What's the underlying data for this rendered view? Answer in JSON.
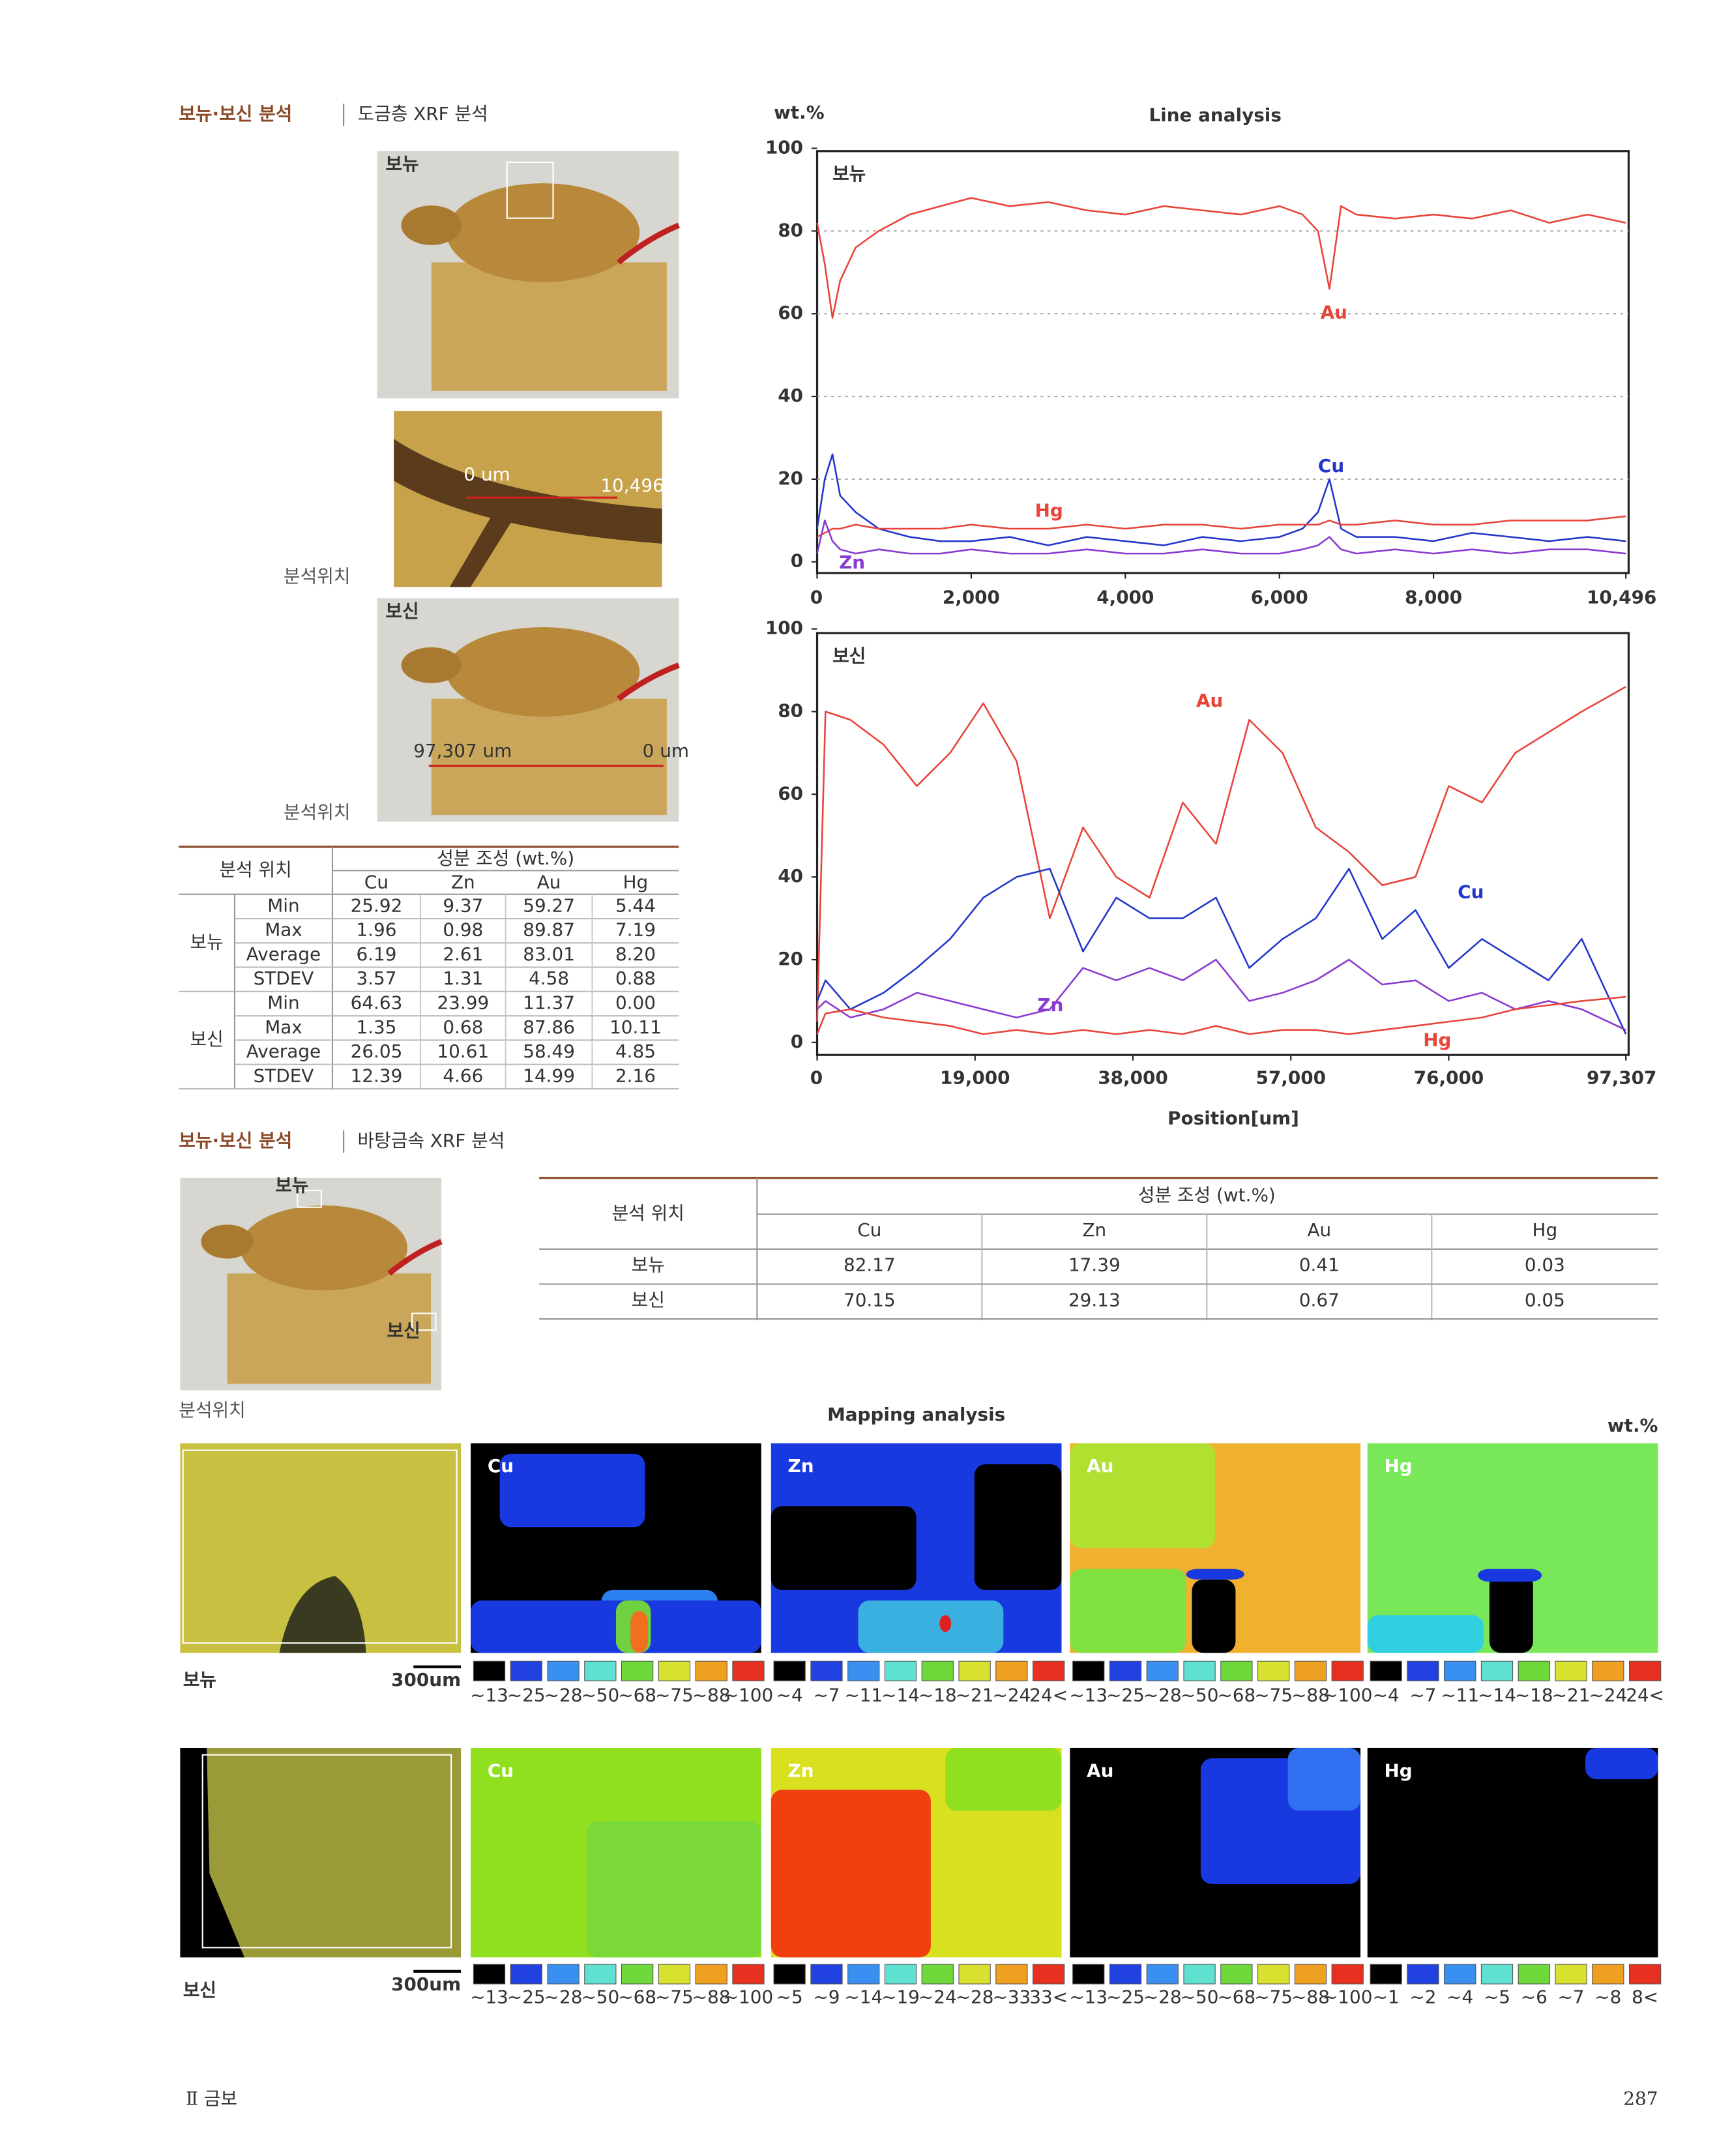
{
  "section1": {
    "title": "보뉴·보신 분석",
    "subtitle": "도금층 XRF 분석",
    "photo_tags": [
      "보뉴",
      "보신"
    ],
    "position_labels": [
      "분석위치",
      "분석위치"
    ],
    "scan_labels": [
      "0 um",
      "10,496",
      "97,307 um",
      "0 um"
    ]
  },
  "table1": {
    "location": "분석 위치",
    "composition": "성분 조성 (wt.%)",
    "elements": [
      "Cu",
      "Zn",
      "Au",
      "Hg"
    ],
    "groups": [
      {
        "name": "보뉴",
        "rows": [
          {
            "stat": "Min",
            "values": [
              "25.92",
              "9.37",
              "59.27",
              "5.44"
            ]
          },
          {
            "stat": "Max",
            "values": [
              "1.96",
              "0.98",
              "89.87",
              "7.19"
            ]
          },
          {
            "stat": "Average",
            "values": [
              "6.19",
              "2.61",
              "83.01",
              "8.20"
            ]
          },
          {
            "stat": "STDEV",
            "values": [
              "3.57",
              "1.31",
              "4.58",
              "0.88"
            ]
          }
        ]
      },
      {
        "name": "보신",
        "rows": [
          {
            "stat": "Min",
            "values": [
              "64.63",
              "23.99",
              "11.37",
              "0.00"
            ]
          },
          {
            "stat": "Max",
            "values": [
              "1.35",
              "0.68",
              "87.86",
              "10.11"
            ]
          },
          {
            "stat": "Average",
            "values": [
              "26.05",
              "10.61",
              "58.49",
              "4.85"
            ]
          },
          {
            "stat": "STDEV",
            "values": [
              "12.39",
              "4.66",
              "14.99",
              "2.16"
            ]
          }
        ]
      }
    ]
  },
  "chart_data": [
    {
      "type": "line",
      "title": "Line analysis",
      "y_label": "wt.%",
      "panel_label": "보뉴",
      "grid": true,
      "xlim": [
        0,
        10496
      ],
      "xticks": [
        0,
        {
          "value": 2000,
          "label": "2,000"
        },
        {
          "value": 4000,
          "label": "4,000"
        },
        {
          "value": 6000,
          "label": "6,000"
        },
        {
          "value": 8000,
          "label": "8,000"
        },
        {
          "value": 10496,
          "label": "10,496"
        }
      ],
      "ylim": [
        0,
        100
      ],
      "yticks": [
        0,
        20,
        40,
        60,
        80,
        100
      ],
      "x": [
        0,
        100,
        200,
        300,
        500,
        800,
        1200,
        1600,
        2000,
        2500,
        3000,
        3500,
        4000,
        4500,
        5000,
        5500,
        6000,
        6300,
        6500,
        6650,
        6800,
        7000,
        7500,
        8000,
        8500,
        9000,
        9500,
        10000,
        10496
      ],
      "series": [
        {
          "name": "Au",
          "color": "#e8443a",
          "values": [
            82,
            72,
            59,
            68,
            76,
            80,
            84,
            86,
            88,
            86,
            87,
            85,
            84,
            86,
            85,
            84,
            86,
            84,
            80,
            66,
            86,
            84,
            83,
            84,
            83,
            85,
            82,
            84,
            82
          ]
        },
        {
          "name": "Cu",
          "color": "#2436c8",
          "values": [
            8,
            20,
            26,
            16,
            12,
            8,
            6,
            5,
            5,
            6,
            4,
            6,
            5,
            4,
            6,
            5,
            6,
            8,
            12,
            20,
            8,
            6,
            6,
            5,
            7,
            6,
            5,
            6,
            5
          ]
        },
        {
          "name": "Hg",
          "color": "#e8443a",
          "values": [
            6,
            7,
            8,
            8,
            9,
            8,
            8,
            8,
            9,
            8,
            8,
            9,
            8,
            9,
            9,
            8,
            9,
            9,
            9,
            10,
            9,
            9,
            10,
            9,
            9,
            10,
            10,
            10,
            11
          ]
        },
        {
          "name": "Zn",
          "color": "#8a3ad0",
          "values": [
            2,
            10,
            5,
            3,
            2,
            3,
            2,
            2,
            3,
            2,
            2,
            3,
            2,
            2,
            3,
            2,
            2,
            3,
            4,
            6,
            3,
            2,
            3,
            2,
            3,
            2,
            3,
            3,
            2
          ]
        }
      ]
    },
    {
      "type": "line",
      "panel_label": "보신",
      "x_label": "Position[um]",
      "grid": false,
      "xlim": [
        0,
        97307
      ],
      "xticks": [
        0,
        {
          "value": 19000,
          "label": "19,000"
        },
        {
          "value": 38000,
          "label": "38,000"
        },
        {
          "value": 57000,
          "label": "57,000"
        },
        {
          "value": 76000,
          "label": "76,000"
        },
        {
          "value": 97307,
          "label": "97,307"
        }
      ],
      "ylim": [
        0,
        100
      ],
      "yticks": [
        0,
        20,
        40,
        60,
        80,
        100
      ],
      "x": [
        0,
        1000,
        4000,
        8000,
        12000,
        16000,
        20000,
        24000,
        28000,
        32000,
        36000,
        40000,
        44000,
        48000,
        52000,
        56000,
        60000,
        64000,
        68000,
        72000,
        76000,
        80000,
        84000,
        88000,
        92000,
        97307
      ],
      "series": [
        {
          "name": "Au",
          "color": "#e8443a",
          "values": [
            5,
            80,
            78,
            72,
            62,
            70,
            82,
            68,
            30,
            52,
            40,
            35,
            58,
            48,
            78,
            70,
            52,
            46,
            38,
            40,
            62,
            58,
            70,
            75,
            80,
            86
          ]
        },
        {
          "name": "Cu",
          "color": "#2436c8",
          "values": [
            10,
            15,
            8,
            12,
            18,
            25,
            35,
            40,
            42,
            22,
            35,
            30,
            30,
            35,
            18,
            25,
            30,
            42,
            25,
            32,
            18,
            25,
            20,
            15,
            25,
            2
          ]
        },
        {
          "name": "Zn",
          "color": "#8a3ad0",
          "values": [
            8,
            10,
            6,
            8,
            12,
            10,
            8,
            6,
            8,
            18,
            15,
            18,
            15,
            20,
            10,
            12,
            15,
            20,
            14,
            15,
            10,
            12,
            8,
            10,
            8,
            3
          ]
        },
        {
          "name": "Hg",
          "color": "#e8443a",
          "values": [
            2,
            7,
            8,
            6,
            5,
            4,
            2,
            3,
            2,
            3,
            2,
            3,
            2,
            4,
            2,
            3,
            3,
            2,
            3,
            4,
            5,
            6,
            8,
            9,
            10,
            11
          ]
        }
      ]
    }
  ],
  "section2": {
    "title": "보뉴·보신 분석",
    "subtitle": "바탕금속 XRF 분석",
    "photo_tags": [
      "보뉴",
      "보신"
    ],
    "position_label": "분석위치"
  },
  "table2": {
    "location": "분석 위치",
    "composition": "성분 조성 (wt.%)",
    "elements": [
      "Cu",
      "Zn",
      "Au",
      "Hg"
    ],
    "rows": [
      {
        "name": "보뉴",
        "values": [
          "82.17",
          "17.39",
          "0.41",
          "0.03"
        ]
      },
      {
        "name": "보신",
        "values": [
          "70.15",
          "29.13",
          "0.67",
          "0.05"
        ]
      }
    ]
  },
  "mapping": {
    "title": "Mapping analysis",
    "unit": "wt.%",
    "rows": [
      {
        "label": "보뉴",
        "scale": "300um",
        "maps": [
          {
            "element": "Cu",
            "legend": [
              "~13",
              "~25",
              "~28",
              "~50",
              "~68",
              "~75",
              "~88",
              "~100"
            ]
          },
          {
            "element": "Zn",
            "legend": [
              "~4",
              "~7",
              "~11",
              "~14",
              "~18",
              "~21",
              "~24",
              "24<"
            ]
          },
          {
            "element": "Au",
            "legend": [
              "~13",
              "~25",
              "~28",
              "~50",
              "~68",
              "~75",
              "~88",
              "~100"
            ]
          },
          {
            "element": "Hg",
            "legend": [
              "~4",
              "~7",
              "~11",
              "~14",
              "~18",
              "~21",
              "~24",
              "24<"
            ]
          }
        ]
      },
      {
        "label": "보신",
        "scale": "300um",
        "maps": [
          {
            "element": "Cu",
            "legend": [
              "~13",
              "~25",
              "~28",
              "~50",
              "~68",
              "~75",
              "~88",
              "~100"
            ]
          },
          {
            "element": "Zn",
            "legend": [
              "~5",
              "~9",
              "~14",
              "~19",
              "~24",
              "~28",
              "~33",
              "33<"
            ]
          },
          {
            "element": "Au",
            "legend": [
              "~13",
              "~25",
              "~28",
              "~50",
              "~68",
              "~75",
              "~88",
              "~100"
            ]
          },
          {
            "element": "Hg",
            "legend": [
              "~1",
              "~2",
              "~4",
              "~5",
              "~6",
              "~7",
              "~8",
              "8<"
            ]
          }
        ]
      }
    ]
  },
  "footer": {
    "section": "Ⅱ 금보",
    "page": "287"
  }
}
